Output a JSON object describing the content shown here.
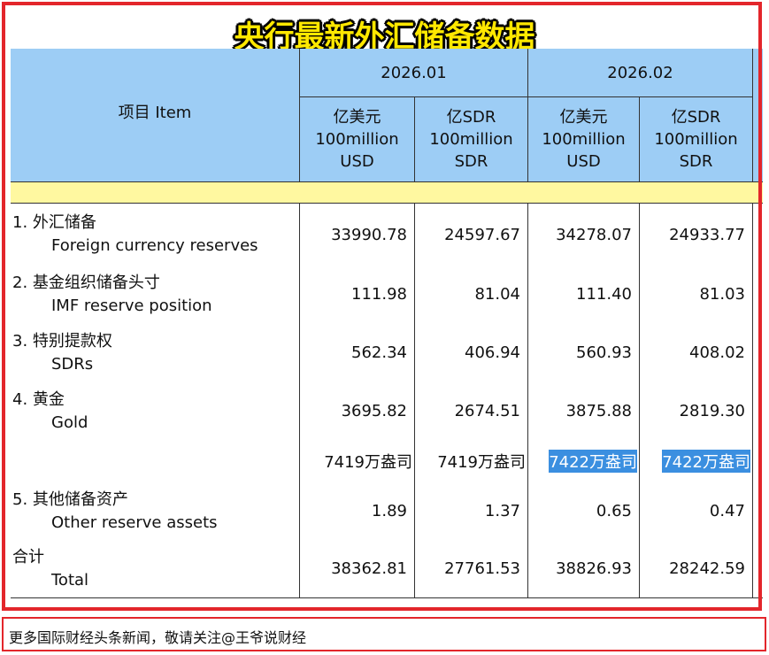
{
  "title": "央行最新外汇储备数据",
  "table": {
    "header": {
      "item": "项目  Item",
      "periods": [
        "2026.01",
        "2026.02"
      ],
      "units": [
        [
          "亿美元",
          "100million",
          "USD"
        ],
        [
          "亿SDR",
          "100million",
          "SDR"
        ],
        [
          "亿美元",
          "100million",
          "USD"
        ],
        [
          "亿SDR",
          "100million",
          "SDR"
        ]
      ]
    },
    "rows": [
      {
        "cn": "1.  外汇储备",
        "en": "Foreign currency reserves",
        "values": [
          "33990.78",
          "24597.67",
          "34278.07",
          "24933.77"
        ]
      },
      {
        "cn": "2.  基金组织储备头寸",
        "en": "IMF reserve position",
        "values": [
          "111.98",
          "81.04",
          "111.40",
          "81.03"
        ]
      },
      {
        "cn": "3.  特别提款权",
        "en": "SDRs",
        "values": [
          "562.34",
          "406.94",
          "560.93",
          "408.02"
        ]
      },
      {
        "cn": "4.  黄金",
        "en": "Gold",
        "values": [
          "3695.82",
          "2674.51",
          "3875.88",
          "2819.30"
        ]
      },
      {
        "values": [
          "7419万盎司",
          "7419万盎司",
          "7422万盎司",
          "7422万盎司"
        ]
      },
      {
        "cn": "5.  其他储备资产",
        "en": "Other reserve assets",
        "values": [
          "1.89",
          "1.37",
          "0.65",
          "0.47"
        ]
      },
      {
        "cn": "合计",
        "en": "Total",
        "values": [
          "38362.81",
          "27761.53",
          "38826.93",
          "28242.59"
        ]
      }
    ]
  },
  "footer": "更多国际财经头条新闻，敬请关注@王爷说财经"
}
